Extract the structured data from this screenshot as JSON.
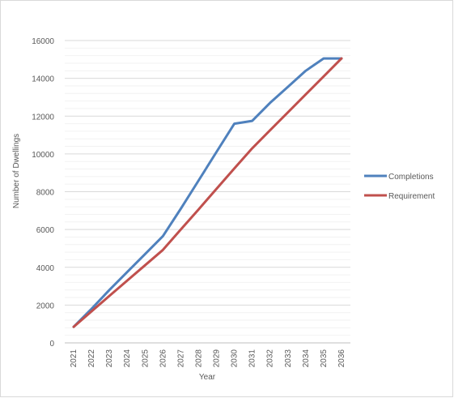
{
  "chart_data": {
    "type": "line",
    "title": "",
    "xlabel": "Year",
    "ylabel": "Number of Dwellings",
    "categories": [
      "2021",
      "2022",
      "2023",
      "2024",
      "2025",
      "2026",
      "2027",
      "2028",
      "2029",
      "2030",
      "2031",
      "2032",
      "2033",
      "2034",
      "2035",
      "2036"
    ],
    "ylim": [
      0,
      16000
    ],
    "yticks": [
      "0",
      "2000",
      "4000",
      "6000",
      "8000",
      "10000",
      "12000",
      "14000",
      "16000"
    ],
    "grid": true,
    "legend_position": "right",
    "series": [
      {
        "name": "Completions",
        "color": "#4f81bd",
        "values": [
          850,
          1800,
          2800,
          3750,
          4700,
          5650,
          7100,
          8600,
          10100,
          11600,
          11750,
          12700,
          13550,
          14400,
          15050,
          15050
        ]
      },
      {
        "name": "Requirement",
        "color": "#c0504d",
        "values": [
          850,
          1670,
          2490,
          3300,
          4110,
          4920,
          6000,
          7070,
          8150,
          9230,
          10300,
          11250,
          12200,
          13150,
          14100,
          15050
        ]
      }
    ]
  }
}
